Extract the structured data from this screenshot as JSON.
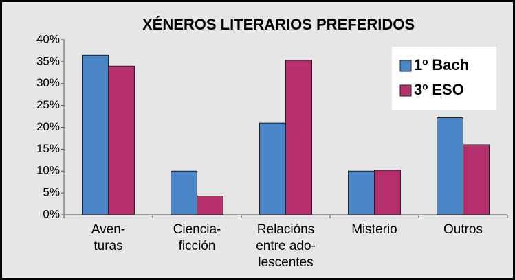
{
  "chart_data": {
    "type": "bar",
    "title": "XÉNEROS LITERARIOS PREFERIDOS",
    "categories": [
      "Aven-\nturas",
      "Ciencia-\nficción",
      "Relacións\nentre ado-\nlescentes",
      "Misterio",
      "Outros"
    ],
    "series": [
      {
        "name": "1º Bach",
        "color": "#4a86c8",
        "values": [
          36.5,
          10,
          21,
          10,
          22.2
        ]
      },
      {
        "name": "3º ESO",
        "color": "#b5306c",
        "values": [
          34,
          4.3,
          35.3,
          10.2,
          16
        ]
      }
    ],
    "ylim": [
      0,
      40
    ],
    "yticks": [
      {
        "value": 0,
        "label": "0%"
      },
      {
        "value": 5,
        "label": "5%"
      },
      {
        "value": 10,
        "label": "10%"
      },
      {
        "value": 15,
        "label": "15%"
      },
      {
        "value": 20,
        "label": "20%"
      },
      {
        "value": 25,
        "label": "25%"
      },
      {
        "value": 30,
        "label": "30%"
      },
      {
        "value": 35,
        "label": "35%"
      },
      {
        "value": 40,
        "label": "40%"
      }
    ],
    "grid": false,
    "legend": "top-right"
  }
}
